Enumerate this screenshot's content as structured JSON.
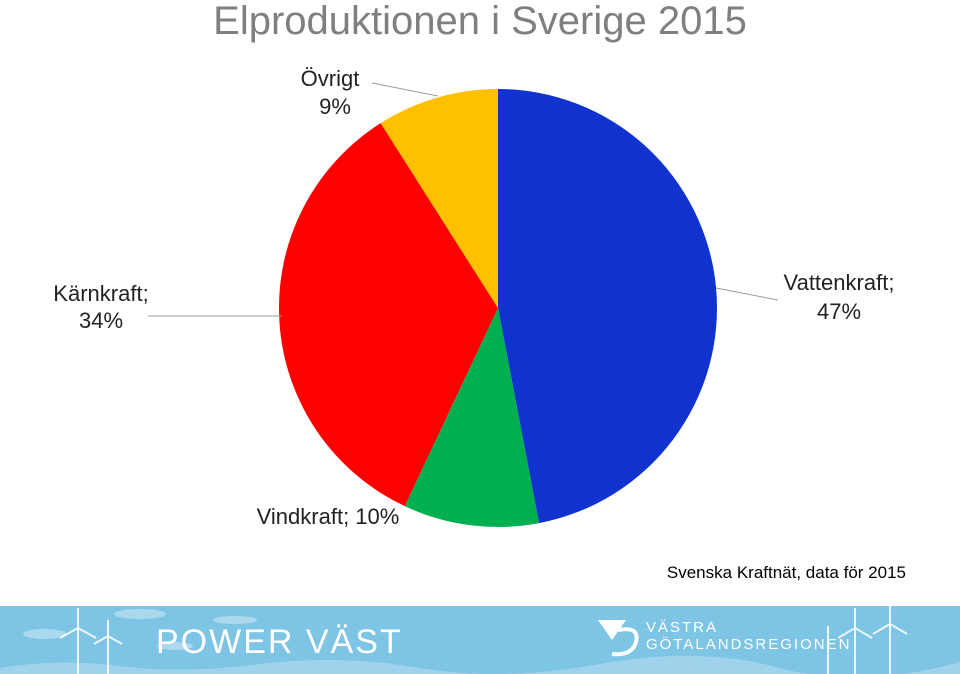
{
  "chart_data": {
    "type": "pie",
    "title": "Elproduktionen i Sverige 2015",
    "slices": [
      {
        "label": "Vattenkraft",
        "value": 47,
        "value_label": "47%",
        "color": "#1033d0"
      },
      {
        "label": "Vindkraft",
        "value": 10,
        "value_label": "10%",
        "color": "#00b050"
      },
      {
        "label": "Kärnkraft",
        "value": 34,
        "value_label": "34%",
        "color": "#ff0000"
      },
      {
        "label": "Övrigt",
        "value": 9,
        "value_label": "9%",
        "color": "#ffc000"
      }
    ],
    "source": "Svenska Kraftnät, data för 2015"
  },
  "footer": {
    "left_brand": "POWER VÄST",
    "right_brand_line1": "VÄSTRA",
    "right_brand_line2": "GÖTALANDSREGIONEN",
    "background": "#7ec4e4"
  }
}
